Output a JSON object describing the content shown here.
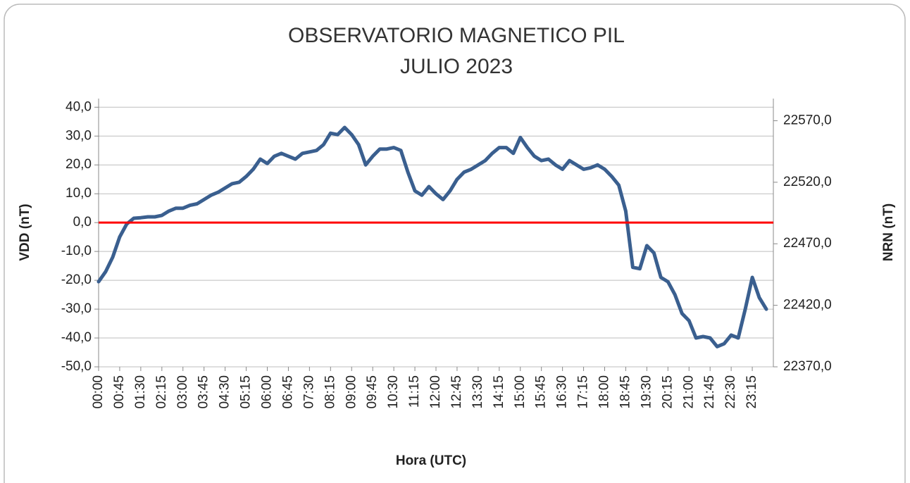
{
  "chart_data": {
    "type": "line",
    "title": "OBSERVATORIO MAGNETICO PIL",
    "subtitle": "JULIO 2023",
    "x_label": "Hora (UTC)",
    "y_label": "VDD (nT)",
    "y2_label": "NRN (nT)",
    "categories": [
      "00:00",
      null,
      null,
      "00:45",
      null,
      null,
      "01:30",
      null,
      null,
      "02:15",
      null,
      null,
      "03:00",
      null,
      null,
      "03:45",
      null,
      null,
      "04:30",
      null,
      null,
      "05:15",
      null,
      null,
      "06:00",
      null,
      null,
      "06:45",
      null,
      null,
      "07:30",
      null,
      null,
      "08:15",
      null,
      null,
      "09:00",
      null,
      null,
      "09:45",
      null,
      null,
      "10:30",
      null,
      null,
      "11:15",
      null,
      null,
      "12:00",
      null,
      null,
      "12:45",
      null,
      null,
      "13:30",
      null,
      null,
      "14:15",
      null,
      null,
      "15:00",
      null,
      null,
      "15:45",
      null,
      null,
      "16:30",
      null,
      null,
      "17:15",
      null,
      null,
      "18:00",
      null,
      null,
      "18:45",
      null,
      null,
      "19:30",
      null,
      null,
      "20:15",
      null,
      null,
      "21:00",
      null,
      null,
      "21:45",
      null,
      null,
      "22:30",
      null,
      null,
      "23:15",
      null,
      null
    ],
    "values": [
      -20.5,
      -17,
      -12,
      -5,
      -0.5,
      1.5,
      1.7,
      2,
      2,
      2.5,
      4,
      5,
      5,
      6,
      6.5,
      8,
      9.5,
      10.5,
      12,
      13.5,
      14,
      16,
      18.5,
      22,
      20.5,
      23,
      24,
      23,
      22,
      24,
      24.5,
      25,
      27,
      31,
      30.5,
      33,
      30.5,
      27,
      20,
      23,
      25.5,
      25.5,
      26,
      25,
      17.5,
      11,
      9.5,
      12.5,
      10,
      8,
      11,
      15,
      17.5,
      18.5,
      20,
      21.5,
      24,
      26,
      26,
      24,
      29.5,
      26,
      23,
      21.5,
      22,
      20,
      18.5,
      21.5,
      20,
      18.5,
      19,
      20,
      18.5,
      16,
      13,
      4,
      -15.5,
      -16,
      -8,
      -10.5,
      -19,
      -20.5,
      -25,
      -31.5,
      -34,
      -40,
      -39.5,
      -40,
      -43,
      -42,
      -39,
      -40,
      -30,
      -19,
      -26,
      -30
    ],
    "color": "#3a5f8f",
    "reference_line": {
      "value": 0,
      "color": "#ff0000"
    },
    "ylim": [
      -50,
      43
    ],
    "yticks": [
      {
        "value": -50,
        "label": "-50,0"
      },
      {
        "value": -40,
        "label": "-40,0"
      },
      {
        "value": -30,
        "label": "-30,0"
      },
      {
        "value": -20,
        "label": "-20,0"
      },
      {
        "value": -10,
        "label": "-10,0"
      },
      {
        "value": 0,
        "label": "0,0"
      },
      {
        "value": 10,
        "label": "10,0"
      },
      {
        "value": 20,
        "label": "20,0"
      },
      {
        "value": 30,
        "label": "30,0"
      },
      {
        "value": 40,
        "label": "40,0"
      }
    ],
    "y2lim": [
      22370,
      22588
    ],
    "y2ticks": [
      {
        "value": 22370,
        "label": "22370,0"
      },
      {
        "value": 22420,
        "label": "22420,0"
      },
      {
        "value": 22470,
        "label": "22470,0"
      },
      {
        "value": 22520,
        "label": "22520,0"
      },
      {
        "value": 22570,
        "label": "22570,0"
      }
    ],
    "grid": true
  }
}
